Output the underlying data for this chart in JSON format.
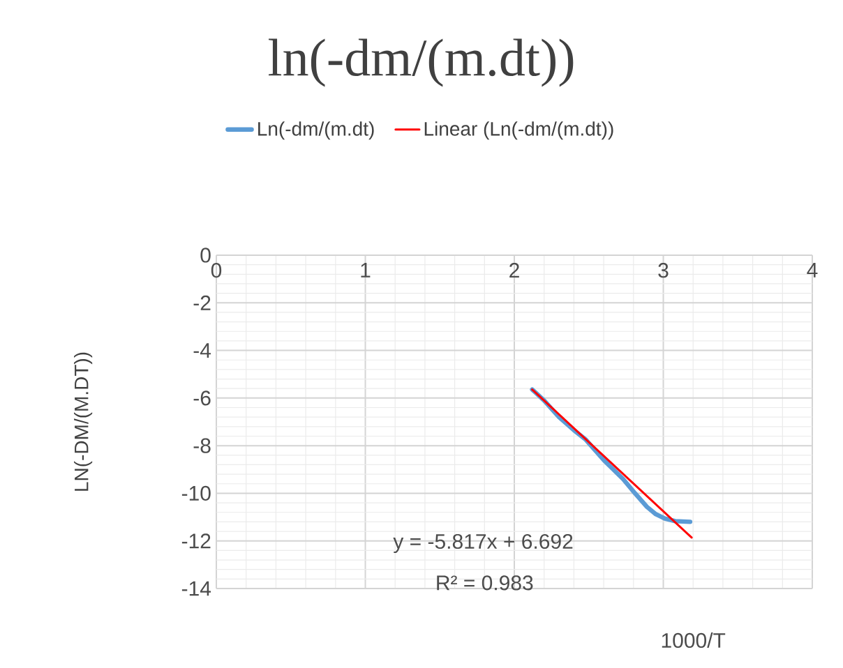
{
  "chart_data": {
    "type": "line",
    "title": "ln(-dm/(m.dt))",
    "xlabel": "1000/T",
    "ylabel": "LN(-DM/(M.DT))",
    "series": [
      {
        "name": "Ln(-dm/(m.dt)",
        "color": "#5b9bd5",
        "x": [
          2.12,
          2.2,
          2.3,
          2.4,
          2.48,
          2.6,
          2.73,
          2.81,
          2.89,
          2.95,
          3.01,
          3.08,
          3.18
        ],
        "values": [
          -5.64,
          -6.1,
          -6.8,
          -7.35,
          -7.75,
          -8.6,
          -9.4,
          -10.0,
          -10.57,
          -10.88,
          -11.06,
          -11.17,
          -11.2
        ]
      },
      {
        "name": "Linear (Ln(-dm/(m.dt))",
        "type": "line",
        "color": "#ff0000",
        "x": [
          2.12,
          3.19
        ],
        "values": [
          -5.64,
          -11.86
        ]
      }
    ],
    "annotations": [
      "y = -5.817x + 6.692",
      "R² = 0.983"
    ],
    "xlim": [
      0,
      4
    ],
    "xticks": [
      0,
      1,
      2,
      3,
      4
    ],
    "ylim": [
      -14,
      0
    ],
    "yticks": [
      0,
      -2,
      -4,
      -6,
      -8,
      -10,
      -12,
      -14
    ],
    "grid": true,
    "legend": "top",
    "marker": "none",
    "line_style": "solid"
  }
}
